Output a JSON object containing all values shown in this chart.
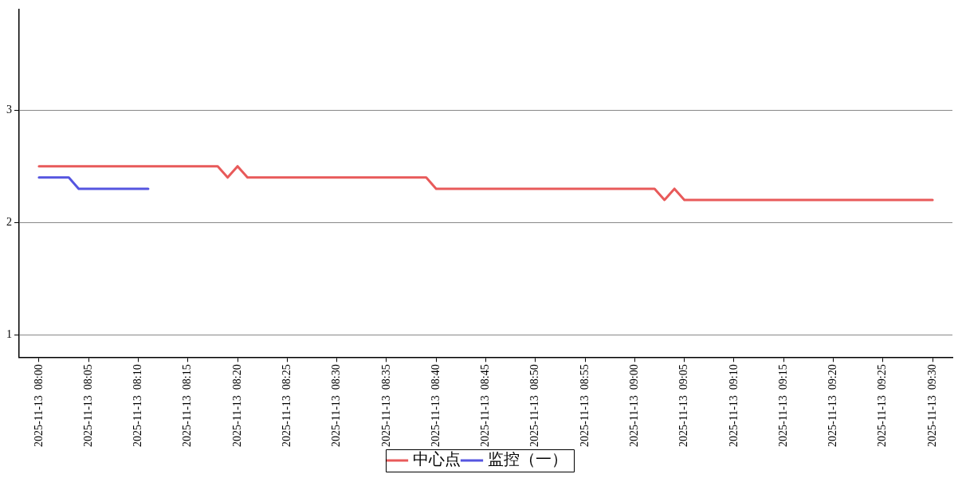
{
  "chart_data": {
    "type": "line",
    "series": [
      {
        "name": "中心点",
        "color": "#e85a5a",
        "x": [
          "2025-11-13T08:00",
          "2025-11-13T08:18",
          "2025-11-13T08:19",
          "2025-11-13T08:20",
          "2025-11-13T08:21",
          "2025-11-13T08:39",
          "2025-11-13T08:40",
          "2025-11-13T09:02",
          "2025-11-13T09:03",
          "2025-11-13T09:04",
          "2025-11-13T09:05",
          "2025-11-13T09:30"
        ],
        "values": [
          2.5,
          2.5,
          2.4,
          2.5,
          2.4,
          2.4,
          2.3,
          2.3,
          2.2,
          2.3,
          2.2,
          2.2
        ]
      },
      {
        "name": "监控（一）",
        "color": "#5555e0",
        "x": [
          "2025-11-13T08:00",
          "2025-11-13T08:03",
          "2025-11-13T08:04",
          "2025-11-13T08:11"
        ],
        "values": [
          2.4,
          2.4,
          2.3,
          2.3
        ]
      }
    ],
    "xlim": [
      "2025-11-13T07:58",
      "2025-11-13T09:32"
    ],
    "xticks": [
      {
        "value": "2025-11-13T08:00",
        "label": "2025-11-13  08:00"
      },
      {
        "value": "2025-11-13T08:05",
        "label": "2025-11-13  08:05"
      },
      {
        "value": "2025-11-13T08:10",
        "label": "2025-11-13  08:10"
      },
      {
        "value": "2025-11-13T08:15",
        "label": "2025-11-13  08:15"
      },
      {
        "value": "2025-11-13T08:20",
        "label": "2025-11-13  08:20"
      },
      {
        "value": "2025-11-13T08:25",
        "label": "2025-11-13  08:25"
      },
      {
        "value": "2025-11-13T08:30",
        "label": "2025-11-13  08:30"
      },
      {
        "value": "2025-11-13T08:35",
        "label": "2025-11-13  08:35"
      },
      {
        "value": "2025-11-13T08:40",
        "label": "2025-11-13  08:40"
      },
      {
        "value": "2025-11-13T08:45",
        "label": "2025-11-13  08:45"
      },
      {
        "value": "2025-11-13T08:50",
        "label": "2025-11-13  08:50"
      },
      {
        "value": "2025-11-13T08:55",
        "label": "2025-11-13  08:55"
      },
      {
        "value": "2025-11-13T09:00",
        "label": "2025-11-13  09:00"
      },
      {
        "value": "2025-11-13T09:05",
        "label": "2025-11-13  09:05"
      },
      {
        "value": "2025-11-13T09:10",
        "label": "2025-11-13  09:10"
      },
      {
        "value": "2025-11-13T09:15",
        "label": "2025-11-13  09:15"
      },
      {
        "value": "2025-11-13T09:20",
        "label": "2025-11-13  09:20"
      },
      {
        "value": "2025-11-13T09:25",
        "label": "2025-11-13  09:25"
      },
      {
        "value": "2025-11-13T09:30",
        "label": "2025-11-13  09:30"
      }
    ],
    "ylim": [
      0.8,
      3.9
    ],
    "yticks": [
      1,
      2,
      3
    ],
    "grid": "y",
    "legend": "bottom",
    "marker": "none",
    "line_style": "solid"
  }
}
